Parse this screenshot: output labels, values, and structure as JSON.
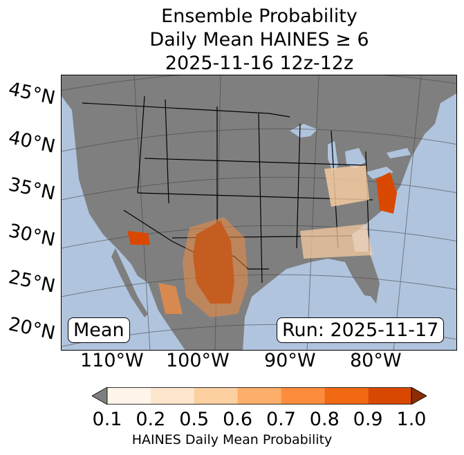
{
  "title": {
    "line1": "Ensemble Probability",
    "line2": "Daily Mean HAINES ≥ 6",
    "line3": "2025-11-16 12z-12z"
  },
  "map": {
    "ocean_color": "#b0c4de",
    "land_color": "#7f7f7f",
    "lat_labels": [
      "45°N",
      "40°N",
      "35°N",
      "30°N",
      "25°N",
      "20°N"
    ],
    "lon_labels": [
      "110°W",
      "100°W",
      "90°W",
      "80°W"
    ],
    "stat_label": "Mean",
    "run_label": "Run: 2025-11-17"
  },
  "colorbar": {
    "ticks": [
      "0.1",
      "0.2",
      "0.5",
      "0.6",
      "0.7",
      "0.8",
      "0.9",
      "1.0"
    ],
    "colors": [
      "#fff5eb",
      "#fee6ce",
      "#fdd0a2",
      "#fdae6b",
      "#fd8d3c",
      "#f16913",
      "#d94801",
      "#8c2d04"
    ],
    "under_color": "#7f7f7f",
    "label": "HAINES Daily Mean Probability"
  }
}
